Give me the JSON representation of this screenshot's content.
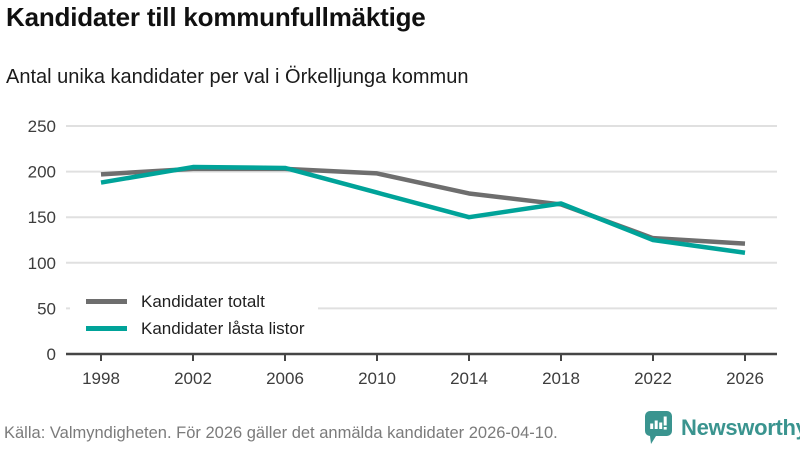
{
  "header": {
    "title": "Kandidater till kommunfullmäktige",
    "subtitle": "Antal unika kandidater per val i Örkelljunga kommun"
  },
  "chart_data": {
    "type": "line",
    "title": "Kandidater till kommunfullmäktige",
    "subtitle": "Antal unika kandidater per val i Örkelljunga kommun",
    "categories": [
      "1998",
      "2002",
      "2006",
      "2010",
      "2014",
      "2018",
      "2022",
      "2026"
    ],
    "series": [
      {
        "name": "Kandidater totalt",
        "color": "#6e6e6e",
        "values": [
          197,
          203,
          203,
          198,
          176,
          164,
          127,
          121
        ]
      },
      {
        "name": "Kandidater låsta listor",
        "color": "#00a399",
        "values": [
          188,
          205,
          204,
          177,
          150,
          165,
          125,
          111
        ]
      }
    ],
    "xlabel": "",
    "ylabel": "",
    "ylim": [
      0,
      250
    ],
    "yticks": [
      0,
      50,
      100,
      150,
      200,
      250
    ],
    "grid": "horizontal-only",
    "legend_position": "inside-bottom-left"
  },
  "legend": {
    "items": [
      {
        "label": "Kandidater totalt",
        "color": "#6e6e6e"
      },
      {
        "label": "Kandidater låsta listor",
        "color": "#00a399"
      }
    ]
  },
  "footer": {
    "source": "Källa: Valmyndigheten. För 2026 gäller det anmälda kandidater 2026-04-10.",
    "brand": "Newsworthy",
    "brand_color": "#3a948f"
  },
  "colors": {
    "grid": "#e0e0e0",
    "axis": "#454545",
    "tick_label": "#3d3d3d"
  }
}
